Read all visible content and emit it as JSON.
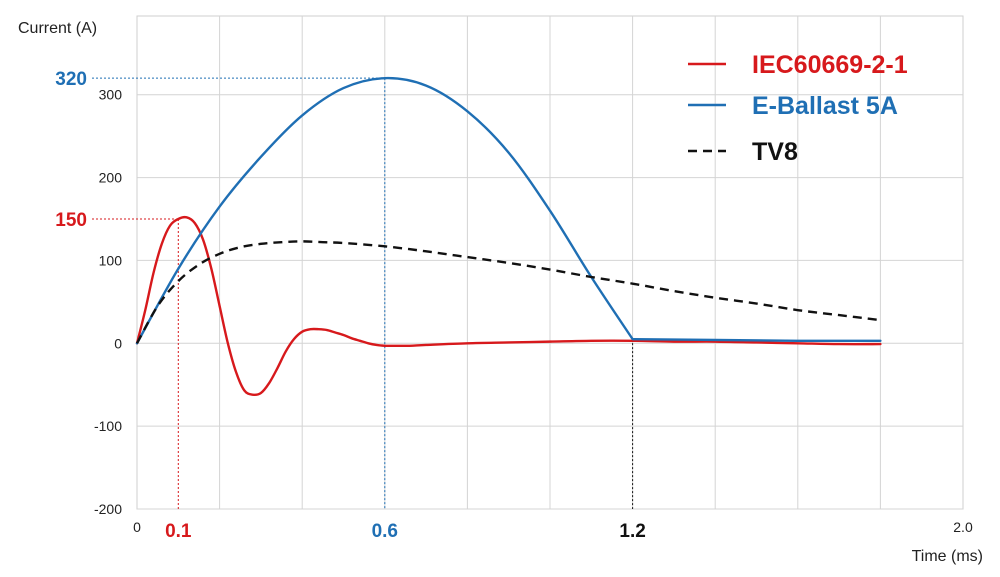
{
  "chart_data": {
    "type": "line",
    "xlabel": "Time (ms)",
    "ylabel": "Current (A)",
    "xlim": [
      0,
      2.0
    ],
    "ylim": [
      -200,
      400
    ],
    "grid": true,
    "legend": "top-right",
    "y_ticks": [
      {
        "value": 300,
        "label": "300"
      },
      {
        "value": 200,
        "label": "200"
      },
      {
        "value": 100,
        "label": "100"
      },
      {
        "value": 0,
        "label": "0"
      },
      {
        "value": -100,
        "label": "-100"
      },
      {
        "value": -200,
        "label": "-200"
      }
    ],
    "x_ticks": [
      {
        "value": 0,
        "label": "0"
      },
      {
        "value": 2.0,
        "label": "2.0"
      }
    ],
    "x_grid": [
      0.2,
      0.4,
      0.6,
      0.8,
      1.0,
      1.2,
      1.4,
      1.6,
      1.8
    ],
    "series": [
      {
        "name": "IEC60669-2-1",
        "color": "#d7191c",
        "style": "solid",
        "x": [
          0,
          0.02,
          0.04,
          0.06,
          0.08,
          0.1,
          0.12,
          0.14,
          0.16,
          0.18,
          0.2,
          0.22,
          0.24,
          0.26,
          0.28,
          0.3,
          0.32,
          0.34,
          0.36,
          0.38,
          0.4,
          0.42,
          0.44,
          0.46,
          0.48,
          0.5,
          0.52,
          0.54,
          0.56,
          0.58,
          0.6,
          0.62,
          0.66,
          0.7,
          0.8,
          0.9,
          1.0,
          1.1,
          1.2,
          1.3,
          1.4,
          1.5,
          1.6,
          1.7,
          1.8
        ],
        "y": [
          0,
          40,
          85,
          120,
          142,
          150,
          152,
          145,
          125,
          90,
          45,
          0,
          -35,
          -57,
          -62,
          -60,
          -48,
          -30,
          -10,
          5,
          14,
          17,
          17,
          16,
          13,
          10,
          6,
          3,
          0,
          -2,
          -3,
          -3,
          -3,
          -2,
          0,
          1,
          2,
          3,
          3,
          2,
          2,
          1,
          0,
          -1,
          -1
        ]
      },
      {
        "name": "E-Ballast 5A",
        "color": "#1f6fb4",
        "style": "solid",
        "x": [
          0,
          0.1,
          0.2,
          0.3,
          0.4,
          0.5,
          0.6,
          0.7,
          0.8,
          0.9,
          1.0,
          1.1,
          1.2,
          1.4,
          1.6,
          1.8
        ],
        "y": [
          0,
          90,
          165,
          225,
          275,
          308,
          320,
          311,
          280,
          230,
          160,
          80,
          5,
          4,
          3,
          3
        ]
      },
      {
        "name": "TV8",
        "color": "#111111",
        "style": "dashed",
        "x": [
          0,
          0.05,
          0.1,
          0.15,
          0.2,
          0.25,
          0.3,
          0.35,
          0.4,
          0.45,
          0.5,
          0.6,
          0.7,
          0.8,
          0.9,
          1.0,
          1.1,
          1.2,
          1.3,
          1.4,
          1.5,
          1.6,
          1.7,
          1.8
        ],
        "y": [
          0,
          45,
          75,
          95,
          108,
          116,
          120,
          122,
          123,
          122,
          121,
          117,
          111,
          104,
          97,
          89,
          80,
          72,
          63,
          55,
          48,
          40,
          34,
          28
        ]
      }
    ],
    "annotations": [
      {
        "type": "hline",
        "y": 320,
        "x_end": 0.6,
        "color": "#1f6fb4",
        "label": "320"
      },
      {
        "type": "vline",
        "x": 0.6,
        "y_end": 320,
        "color": "#1f6fb4",
        "label": "0.6"
      },
      {
        "type": "hline",
        "y": 150,
        "x_end": 0.1,
        "color": "#d7191c",
        "label": "150"
      },
      {
        "type": "vline",
        "x": 0.1,
        "y_end": 150,
        "color": "#d7191c",
        "label": "0.1"
      },
      {
        "type": "vline",
        "x": 1.2,
        "y_end": 5,
        "color": "#111111",
        "label": "1.2"
      }
    ]
  }
}
